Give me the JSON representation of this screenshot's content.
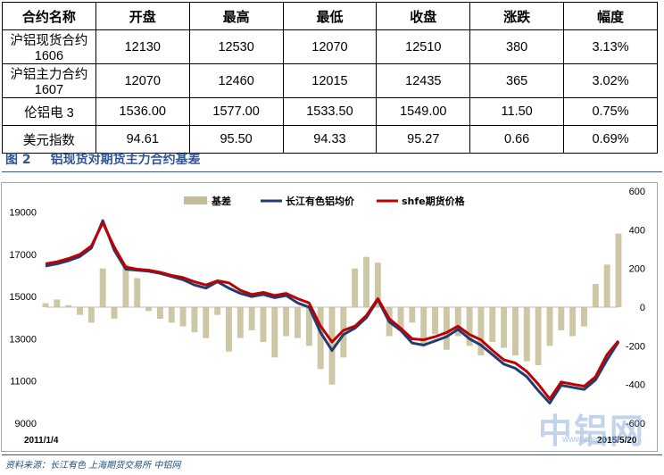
{
  "table": {
    "headers": [
      "合约名称",
      "开盘",
      "最高",
      "最低",
      "收盘",
      "涨跌",
      "幅度"
    ],
    "rows": [
      [
        "沪铝现货合约 1606",
        "12130",
        "12530",
        "12070",
        "12510",
        "380",
        "3.13%"
      ],
      [
        "沪铝主力合约 1607",
        "12070",
        "12460",
        "12015",
        "12435",
        "365",
        "3.02%"
      ],
      [
        "伦铝电 3",
        "1536.00",
        "1577.00",
        "1533.50",
        "1549.00",
        "11.50",
        "0.75%"
      ],
      [
        "美元指数",
        "94.61",
        "95.50",
        "94.33",
        "95.27",
        "0.66",
        "0.69%"
      ]
    ]
  },
  "figure": {
    "number": "图 2",
    "title": "铝现货对期货主力合约基差"
  },
  "source_text": "资料来源：长江有色   上海期货交易所   中铝网",
  "watermark": {
    "text": "中铝网",
    "sub": "www.cnal.com"
  },
  "colors": {
    "basis": "#c4bd97",
    "spot": "#1f3d73",
    "futures": "#c00000",
    "accent": "#2f5597"
  },
  "chart_data": {
    "type": "line",
    "legend": [
      "基差",
      "长江有色铝均价",
      "shfe期货价格"
    ],
    "legend_placement": "top",
    "x_labels": [
      "2011/1/4",
      "2015/5/20"
    ],
    "x_range": [
      "2011/1/4",
      "2015/5/20"
    ],
    "y_left": {
      "ticks": [
        9000,
        11000,
        13000,
        15000,
        17000,
        19000
      ],
      "range": [
        9000,
        20000
      ]
    },
    "y_right": {
      "ticks": [
        -600,
        -400,
        -200,
        0,
        200,
        400,
        600
      ],
      "range": [
        -600,
        600
      ]
    },
    "x": [
      0,
      2,
      4,
      6,
      8,
      10,
      12,
      14,
      16,
      18,
      20,
      22,
      24,
      26,
      28,
      30,
      32,
      34,
      36,
      38,
      40,
      42,
      44,
      46,
      48,
      50,
      52,
      54,
      56,
      58,
      60,
      62,
      64,
      66,
      68,
      70,
      72,
      74,
      76,
      78,
      80,
      82,
      84,
      86,
      88,
      90,
      92,
      94,
      96,
      98,
      100
    ],
    "series": [
      {
        "name": "长江有色铝均价",
        "axis": "left",
        "kind": "line",
        "values": [
          16450,
          16550,
          16700,
          16900,
          17300,
          18600,
          17200,
          16300,
          16250,
          16200,
          16100,
          15950,
          15800,
          15550,
          15400,
          15700,
          15400,
          15150,
          15000,
          15100,
          14950,
          15050,
          14700,
          14500,
          13300,
          12450,
          13200,
          13500,
          14000,
          14850,
          13800,
          13400,
          12800,
          12700,
          12900,
          13100,
          13450,
          13000,
          12700,
          12250,
          11800,
          11600,
          11200,
          10550,
          9950,
          10800,
          10700,
          10600,
          11050,
          12000,
          12850
        ]
      },
      {
        "name": "shfe期货价格",
        "axis": "left",
        "kind": "line",
        "values": [
          16550,
          16650,
          16800,
          17000,
          17400,
          18500,
          17350,
          16400,
          16300,
          16250,
          16150,
          16000,
          15900,
          15700,
          15550,
          15750,
          15650,
          15300,
          15100,
          15200,
          15050,
          15150,
          14900,
          14700,
          13600,
          12850,
          13400,
          13600,
          14100,
          14900,
          13950,
          13500,
          13000,
          12950,
          13100,
          13300,
          13600,
          13200,
          12950,
          12450,
          12000,
          11850,
          11450,
          10850,
          10150,
          10950,
          10850,
          10750,
          11200,
          12250,
          12900
        ]
      },
      {
        "name": "基差",
        "axis": "right",
        "kind": "bar",
        "values": [
          20,
          40,
          10,
          -40,
          -80,
          200,
          -60,
          220,
          150,
          -20,
          -60,
          -80,
          -100,
          -130,
          -160,
          -40,
          -230,
          -160,
          -120,
          -180,
          -260,
          -150,
          -160,
          -200,
          -320,
          -400,
          -260,
          200,
          260,
          230,
          -150,
          -120,
          -80,
          -200,
          -140,
          -220,
          -150,
          -200,
          -250,
          -180,
          -210,
          -250,
          -280,
          -300,
          -200,
          -120,
          -150,
          -100,
          120,
          220,
          380
        ]
      }
    ]
  }
}
